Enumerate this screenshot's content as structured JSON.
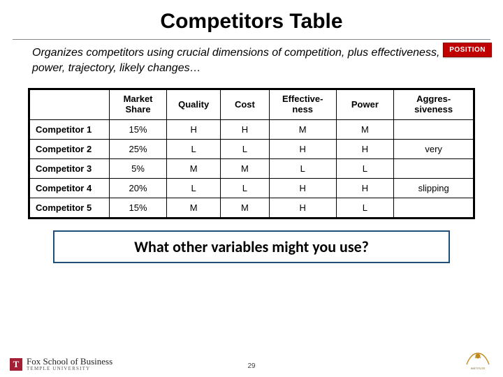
{
  "title": "Competitors Table",
  "subtitle": "Organizes competitors using crucial dimensions of competition, plus effectiveness, power, trajectory, likely changes…",
  "badge": "POSITION",
  "badge_bg": "#c00000",
  "badge_text_color": "#ffffff",
  "table": {
    "columns": [
      "",
      "Market Share",
      "Quality",
      "Cost",
      "Effective-\nness",
      "Power",
      "Aggres-\nsiveness"
    ],
    "rows": [
      [
        "Competitor 1",
        "15%",
        "H",
        "H",
        "M",
        "M",
        ""
      ],
      [
        "Competitor 2",
        "25%",
        "L",
        "L",
        "H",
        "H",
        "very"
      ],
      [
        "Competitor 3",
        "5%",
        "M",
        "M",
        "L",
        "L",
        ""
      ],
      [
        "Competitor 4",
        "20%",
        "L",
        "L",
        "H",
        "H",
        "slipping"
      ],
      [
        "Competitor 5",
        "15%",
        "M",
        "M",
        "H",
        "L",
        ""
      ]
    ],
    "border_color": "#000000",
    "col_widths_pct": [
      18,
      13,
      12,
      11,
      15,
      13,
      18
    ]
  },
  "callout": "What other variables might you use?",
  "callout_border": "#1f4e79",
  "footer": {
    "logo_mark": "T",
    "logo_top": "Fox School of Business",
    "logo_bot": "TEMPLE UNIVERSITY",
    "logo_mark_bg": "#a41e35",
    "right_logo_color": "#c08a1e"
  },
  "page_number": "29"
}
